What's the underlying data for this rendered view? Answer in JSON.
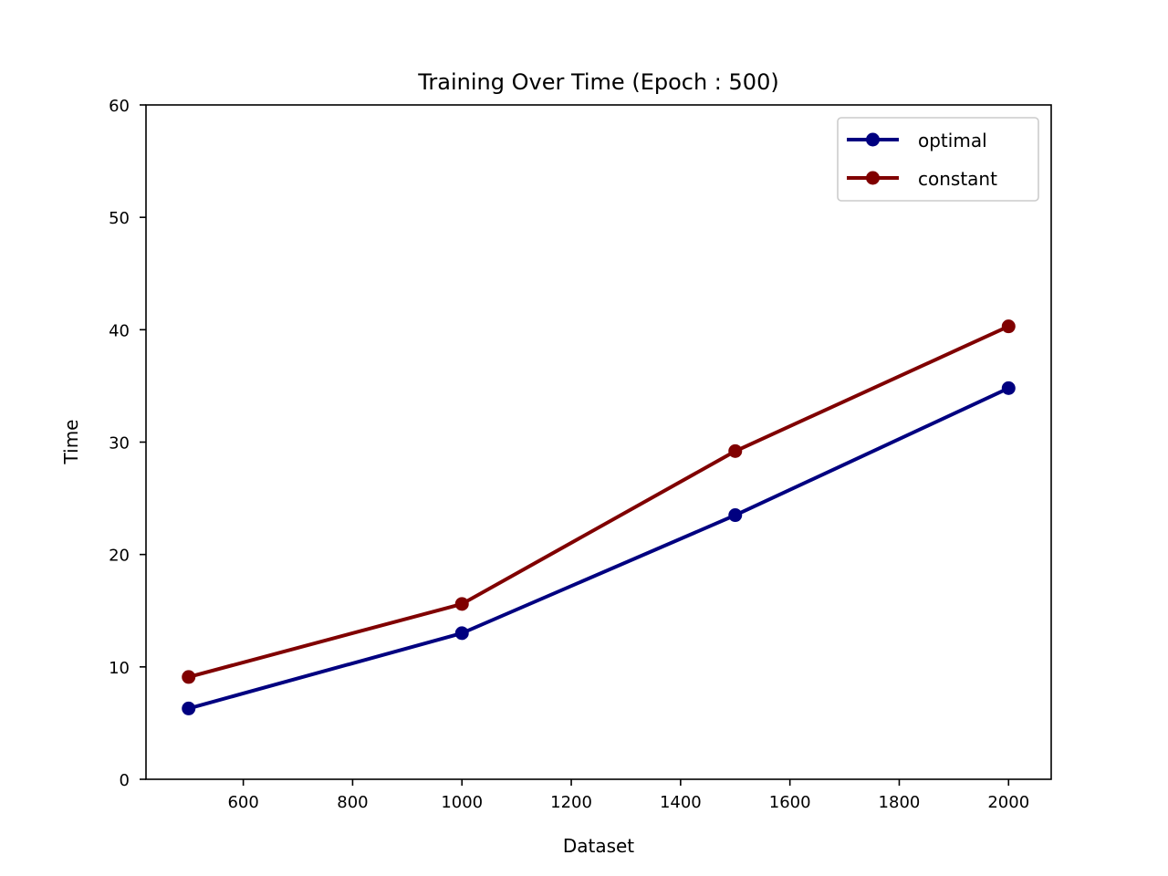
{
  "chart_data": {
    "type": "line",
    "title": "Training Over Time (Epoch : 500)",
    "xlabel": "Dataset",
    "ylabel": "Time",
    "xlim": [
      422,
      2078
    ],
    "ylim": [
      0,
      60
    ],
    "xticks": [
      600,
      800,
      1000,
      1200,
      1400,
      1600,
      1800,
      2000
    ],
    "yticks": [
      0,
      10,
      20,
      30,
      40,
      50,
      60
    ],
    "x": [
      500,
      1000,
      1500,
      2000
    ],
    "series": [
      {
        "name": "optimal",
        "color": "#000080",
        "values": [
          6.3,
          13.0,
          23.5,
          34.8
        ]
      },
      {
        "name": "constant",
        "color": "#800000",
        "values": [
          9.1,
          15.6,
          29.2,
          40.3
        ]
      }
    ],
    "legend": "top-right",
    "grid": false
  }
}
